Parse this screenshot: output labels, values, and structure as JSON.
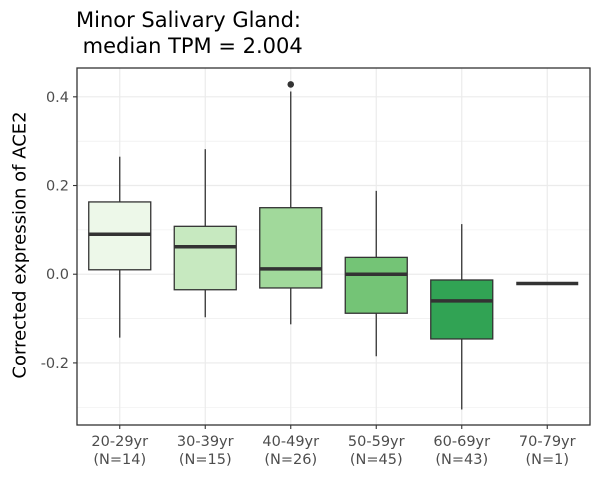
{
  "chart_data": {
    "type": "box",
    "title_lines": [
      "Minor Salivary Gland:",
      " median TPM = 2.004"
    ],
    "xlabel": "",
    "ylabel": "Corrected expression of ACE2",
    "ylim": [
      -0.34,
      0.465
    ],
    "yticks": [
      -0.2,
      0.0,
      0.2,
      0.4
    ],
    "ytick_labels": [
      "-0.2",
      "0.0",
      "0.2",
      "0.4"
    ],
    "grid": true,
    "categories": [
      {
        "label": "20-29yr",
        "n_label": "(N=14)",
        "color": "#edf8e9",
        "whisker_low": -0.143,
        "q1": 0.01,
        "median": 0.09,
        "q3": 0.163,
        "whisker_high": 0.265,
        "outliers": []
      },
      {
        "label": "30-39yr",
        "n_label": "(N=15)",
        "color": "#c7e9c0",
        "whisker_low": -0.097,
        "q1": -0.035,
        "median": 0.062,
        "q3": 0.108,
        "whisker_high": 0.282,
        "outliers": []
      },
      {
        "label": "40-49yr",
        "n_label": "(N=26)",
        "color": "#a1d99b",
        "whisker_low": -0.113,
        "q1": -0.031,
        "median": 0.012,
        "q3": 0.15,
        "whisker_high": 0.412,
        "outliers": [
          0.428
        ]
      },
      {
        "label": "50-59yr",
        "n_label": "(N=45)",
        "color": "#74c476",
        "whisker_low": -0.185,
        "q1": -0.088,
        "median": 0.0,
        "q3": 0.038,
        "whisker_high": 0.188,
        "outliers": []
      },
      {
        "label": "60-69yr",
        "n_label": "(N=43)",
        "color": "#31a354",
        "whisker_low": -0.305,
        "q1": -0.146,
        "median": -0.06,
        "q3": -0.013,
        "whisker_high": 0.113,
        "outliers": []
      },
      {
        "label": "70-79yr",
        "n_label": "(N=1)",
        "color": "#006d2c",
        "whisker_low": -0.021,
        "q1": -0.021,
        "median": -0.021,
        "q3": -0.021,
        "whisker_high": -0.021,
        "outliers": []
      }
    ]
  },
  "colors": {
    "panel_border": "#333333",
    "grid": "#ebebeb",
    "tick_text": "#4d4d4d",
    "box_line": "#333333"
  }
}
